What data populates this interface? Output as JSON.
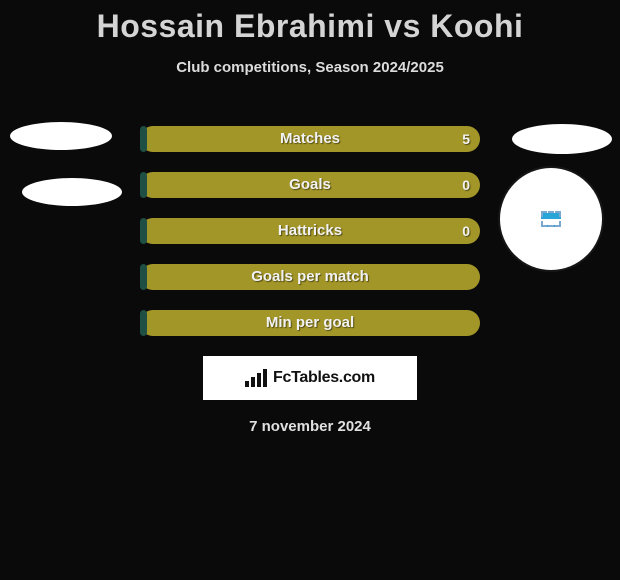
{
  "title": "Hossain Ebrahimi vs Koohi",
  "subtitle": "Club competitions, Season 2024/2025",
  "date": "7 november 2024",
  "branding": {
    "text": "FcTables.com"
  },
  "colors": {
    "player_left": "#1f4f44",
    "player_right": "#a39628",
    "bar_text": "#f2f2f2",
    "background": "#0a0a0a"
  },
  "bars": [
    {
      "label": "Matches",
      "left_val": "",
      "right_val": "5",
      "split_pct": 2
    },
    {
      "label": "Goals",
      "left_val": "",
      "right_val": "0",
      "split_pct": 2
    },
    {
      "label": "Hattricks",
      "left_val": "",
      "right_val": "0",
      "split_pct": 2
    },
    {
      "label": "Goals per match",
      "left_val": "",
      "right_val": "",
      "split_pct": 2
    },
    {
      "label": "Min per goal",
      "left_val": "",
      "right_val": "",
      "split_pct": 2
    }
  ]
}
